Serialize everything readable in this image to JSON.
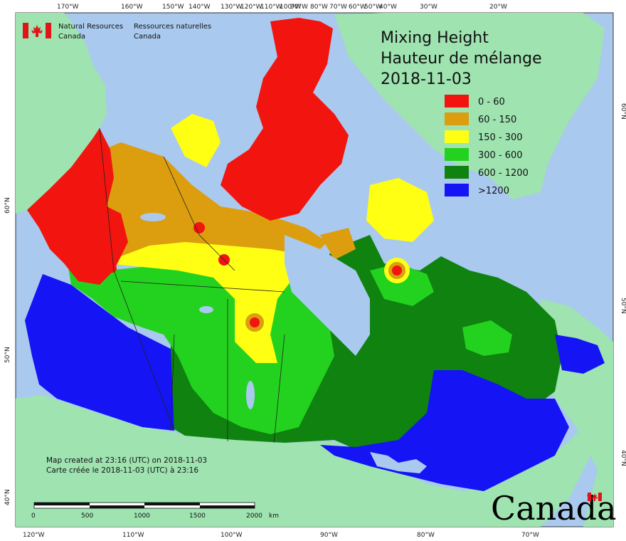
{
  "title": {
    "line1": "Mixing Height",
    "line2": "Hauteur de mélange",
    "date": "2018-11-03"
  },
  "agency": {
    "en_line1": "Natural Resources",
    "en_line2": "Canada",
    "fr_line1": "Ressources naturelles",
    "fr_line2": "Canada"
  },
  "legend": {
    "items": [
      {
        "label": "0 - 60",
        "color": "#f2140f"
      },
      {
        "label": "60 - 150",
        "color": "#dc9e0f"
      },
      {
        "label": "150 - 300",
        "color": "#ffff14"
      },
      {
        "label": "300 - 600",
        "color": "#23d21e"
      },
      {
        "label": "600 - 1200",
        "color": "#0f820f"
      },
      {
        "label": ">1200",
        "color": "#1414f5"
      }
    ]
  },
  "notes": {
    "created_en": "Map created at 23:16 (UTC) on 2018-11-03",
    "created_fr": "Carte créée le 2018-11-03 (UTC) à 23:16"
  },
  "scale_bar": {
    "labels": [
      "0",
      "500",
      "1000",
      "1500",
      "2000"
    ],
    "unit": "km"
  },
  "graticule": {
    "top": [
      "170°W",
      "160°W",
      "150°W",
      "140°W",
      "130°W",
      "120°W",
      "110°W",
      "100°W",
      "90°W",
      "80°W",
      "70°W",
      "60°W",
      "50°W",
      "40°W",
      "30°W",
      "20°W"
    ],
    "bottom": [
      "120°W",
      "110°W",
      "100°W",
      "90°W",
      "80°W",
      "70°W"
    ],
    "left": [
      "60°N",
      "50°N",
      "40°N"
    ],
    "right": [
      "60°N",
      "50°N",
      "40°N"
    ]
  },
  "wordmark": "Canada",
  "colors": {
    "ocean": "#a9c9ef",
    "land": "#9ee3b0",
    "lakes": "#a9c9ef",
    "flag_red": "#e0151a"
  }
}
